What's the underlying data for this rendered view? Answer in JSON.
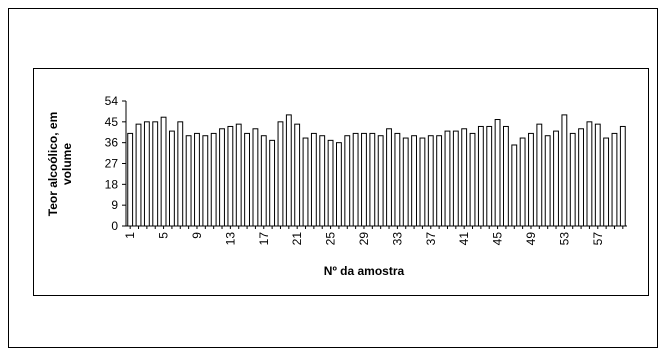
{
  "chart_data": {
    "type": "bar",
    "xlabel": "Nº da amostra",
    "ylabel_lines": [
      "Teor alcoólico, em",
      "volume"
    ],
    "ylim": [
      0,
      54
    ],
    "yticks": [
      0,
      9,
      18,
      27,
      36,
      45,
      54
    ],
    "grid": false,
    "legend": "none",
    "bar_fill": "#ffffff",
    "bar_stroke": "#000000",
    "xtick_labels": [
      "1",
      "5",
      "9",
      "13",
      "17",
      "21",
      "25",
      "29",
      "33",
      "37",
      "41",
      "45",
      "49",
      "53",
      "57"
    ],
    "categories": [
      1,
      2,
      3,
      4,
      5,
      6,
      7,
      8,
      9,
      10,
      11,
      12,
      13,
      14,
      15,
      16,
      17,
      18,
      19,
      20,
      21,
      22,
      23,
      24,
      25,
      26,
      27,
      28,
      29,
      30,
      31,
      32,
      33,
      34,
      35,
      36,
      37,
      38,
      39,
      40,
      41,
      42,
      43,
      44,
      45,
      46,
      47,
      48,
      49,
      50,
      51,
      52,
      53,
      54,
      55,
      56,
      57,
      58,
      59,
      60
    ],
    "values": [
      40,
      44,
      45,
      45,
      47,
      41,
      45,
      39,
      40,
      39,
      40,
      42,
      43,
      44,
      40,
      42,
      39,
      37,
      45,
      48,
      44,
      38,
      40,
      39,
      37,
      36,
      39,
      40,
      40,
      40,
      39,
      42,
      40,
      38,
      39,
      38,
      39,
      39,
      41,
      41,
      42,
      40,
      43,
      43,
      46,
      43,
      35,
      38,
      40,
      44,
      39,
      41,
      48,
      40,
      42,
      45,
      44,
      38,
      40,
      43
    ]
  }
}
